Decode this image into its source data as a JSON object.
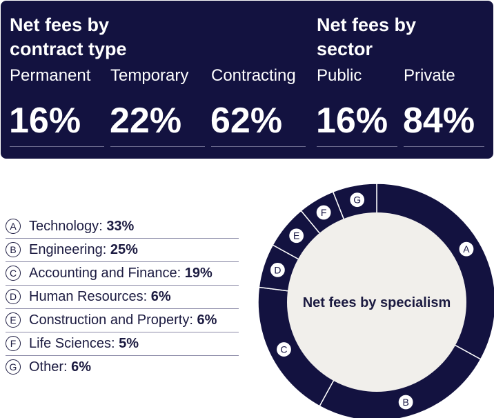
{
  "contract": {
    "heading_line1": "Net fees by",
    "heading_line2": "contract type",
    "items": [
      {
        "label": "Permanent",
        "value": "16%"
      },
      {
        "label": "Temporary",
        "value": "22%"
      },
      {
        "label": "Contracting",
        "value": "62%"
      }
    ]
  },
  "sector": {
    "heading_line1": "Net fees by",
    "heading_line2": "sector",
    "items": [
      {
        "label": "Public",
        "value": "16%"
      },
      {
        "label": "Private",
        "value": "84%"
      }
    ]
  },
  "chart_data": {
    "type": "pie",
    "variant": "donut",
    "title": "Net fees by specialism",
    "categories": [
      "Technology",
      "Engineering",
      "Accounting and Finance",
      "Human Resources",
      "Construction and Property",
      "Life Sciences",
      "Other"
    ],
    "letters": [
      "A",
      "B",
      "C",
      "D",
      "E",
      "F",
      "G"
    ],
    "values": [
      33,
      25,
      19,
      6,
      6,
      5,
      6
    ],
    "labels": [
      "33%",
      "25%",
      "19%",
      "6%",
      "6%",
      "5%",
      "6%"
    ],
    "legend_position": "left"
  },
  "colors": {
    "navy": "#131240",
    "center": "#f1efeb",
    "white": "#ffffff"
  }
}
